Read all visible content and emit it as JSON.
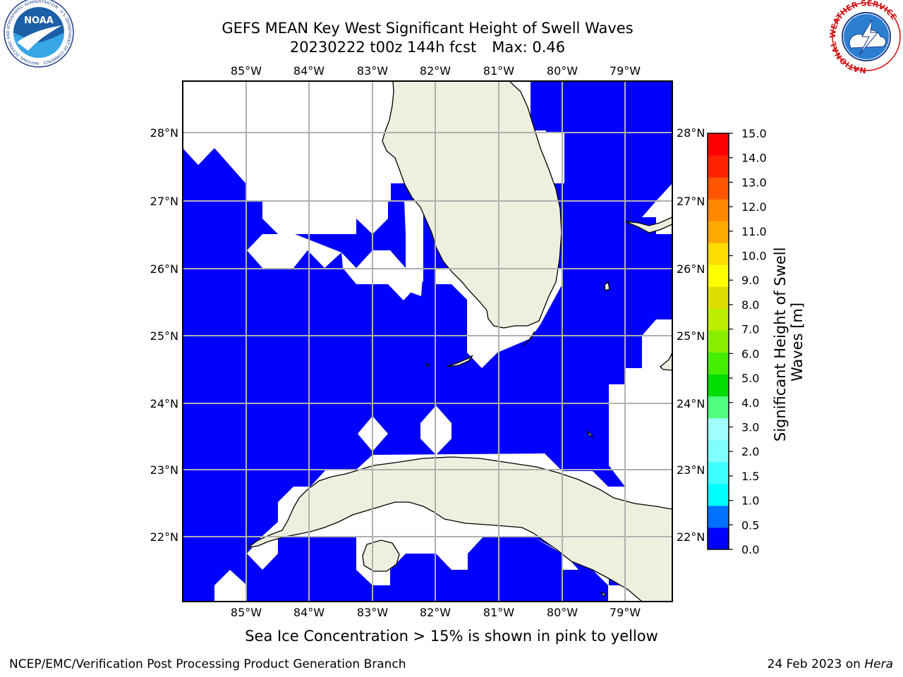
{
  "title": {
    "line1": "GEFS MEAN Key West Significant Height of Swell Waves",
    "line2": "20230222 t00z 144h fcst",
    "max_label": "Max: 0.46"
  },
  "map": {
    "lon_ticks": [
      "85°W",
      "84°W",
      "83°W",
      "82°W",
      "81°W",
      "80°W",
      "79°W"
    ],
    "lat_ticks": [
      "28°N",
      "27°N",
      "26°N",
      "25°N",
      "24°N",
      "23°N",
      "22°N"
    ],
    "colors": {
      "swell_low": "#0000ff",
      "land": "#efefdf",
      "nodata": "#ffffff",
      "grid": "#b0b0b0"
    }
  },
  "colorbar": {
    "label": "Significant Height of Swell Waves [m]",
    "label_line1": "Significant Height of Swell",
    "label_line2": "Waves [m]",
    "ticks": [
      "0.0",
      "0.5",
      "1.0",
      "1.5",
      "2.0",
      "3.0",
      "4.0",
      "5.0",
      "6.0",
      "7.0",
      "8.0",
      "9.0",
      "10.0",
      "11.0",
      "12.0",
      "13.0",
      "14.0",
      "15.0"
    ],
    "colors": [
      "#0000ff",
      "#0070ff",
      "#00ffff",
      "#40ffff",
      "#80ffff",
      "#a0ffff",
      "#50ff80",
      "#00dd00",
      "#44ee00",
      "#88ee00",
      "#bbee00",
      "#dddd00",
      "#ffff00",
      "#ffdd00",
      "#ffaa00",
      "#ff8800",
      "#ff5500",
      "#ff2200",
      "#ff0000"
    ]
  },
  "note": "Sea Ice Concentration > 15% is shown in pink to yellow",
  "footer": {
    "left": "NCEP/EMC/Verification Post Processing Product Generation Branch",
    "date": "24 Feb 2023 on",
    "machine": "Hera"
  },
  "logos": {
    "noaa_text": "NOAA",
    "noaa_ring": "NATIONAL OCEANIC AND ATMOSPHERIC ADMINISTRATION · U.S. DEPARTMENT OF COMMERCE",
    "nws_ring": "NATIONAL WEATHER SERVICE"
  }
}
